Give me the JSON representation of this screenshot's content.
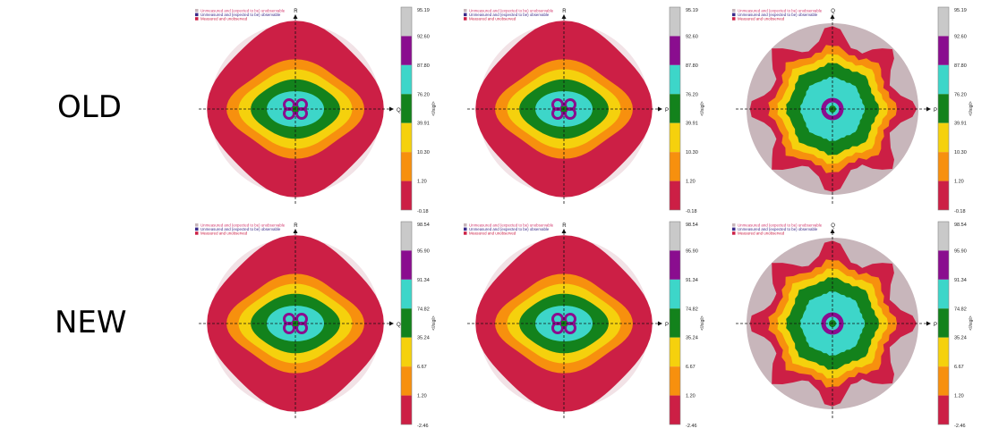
{
  "row_labels": [
    "OLD",
    "NEW"
  ],
  "legend": {
    "entries": [
      {
        "label": "Unmeasured and (expected to be) unobservable",
        "marker_color": "#c8b6bb",
        "text_color": "#d23a6e"
      },
      {
        "label": "Unmeasured and (expected to be) observable",
        "marker_color": "#3a2a8a",
        "text_color": "#3a2a8a"
      },
      {
        "label": "Measured and unobserved",
        "marker_color": "#cc1f45",
        "text_color": "#cc1f45"
      }
    ]
  },
  "colorbar_label": "<I/sigI>",
  "colors": {
    "gray": "#c9c9c9",
    "purple": "#8a0d8f",
    "cyan": "#3dd6c9",
    "green": "#13821c",
    "yellow": "#f5d10d",
    "orange": "#f7900e",
    "red": "#cc1f45",
    "unobservable": "#c8b6bb"
  },
  "panels": [
    {
      "id": "old-1",
      "row": 0,
      "col": 0,
      "axis_right": "Q",
      "axis_top": "R",
      "colorbar_ticks": [
        "95.19",
        "92.60",
        "87.80",
        "76.20",
        "39.91",
        "10.30",
        "1.20",
        "-0.18"
      ]
    },
    {
      "id": "old-2",
      "row": 0,
      "col": 1,
      "axis_right": "P",
      "axis_top": "R",
      "colorbar_ticks": [
        "95.19",
        "92.60",
        "87.80",
        "76.20",
        "39.91",
        "10.30",
        "1.20",
        "-0.18"
      ]
    },
    {
      "id": "old-3",
      "row": 0,
      "col": 2,
      "axis_right": "P",
      "axis_top": "Q",
      "colorbar_ticks": [
        "95.19",
        "92.60",
        "87.80",
        "76.20",
        "39.91",
        "10.30",
        "1.20",
        "-0.18"
      ]
    },
    {
      "id": "new-1",
      "row": 1,
      "col": 0,
      "axis_right": "Q",
      "axis_top": "R",
      "colorbar_ticks": [
        "98.54",
        "95.90",
        "91.34",
        "74.82",
        "35.24",
        "6.67",
        "1.20",
        "-2.46"
      ]
    },
    {
      "id": "new-2",
      "row": 1,
      "col": 1,
      "axis_right": "P",
      "axis_top": "R",
      "colorbar_ticks": [
        "98.54",
        "95.90",
        "91.34",
        "74.82",
        "35.24",
        "6.67",
        "1.20",
        "-2.46"
      ]
    },
    {
      "id": "new-3",
      "row": 1,
      "col": 2,
      "axis_right": "P",
      "axis_top": "Q",
      "colorbar_ticks": [
        "98.54",
        "95.90",
        "91.34",
        "74.82",
        "35.24",
        "6.67",
        "1.20",
        "-2.46"
      ]
    }
  ]
}
